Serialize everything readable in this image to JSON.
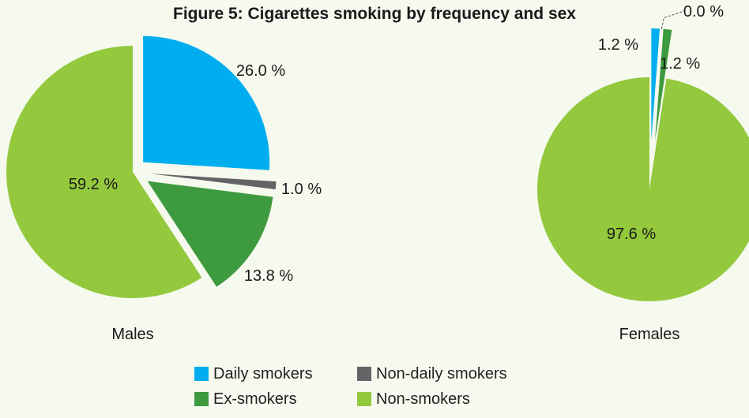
{
  "chart_data": {
    "type": "pie",
    "title": "Figure 5:  Cigarettes smoking by frequency and sex",
    "categories": [
      "Daily smokers",
      "Non-daily smokers",
      "Ex-smokers",
      "Non-smokers"
    ],
    "colors": [
      "#00aeef",
      "#636466",
      "#3e9a3e",
      "#94c83d"
    ],
    "pies": [
      {
        "name": "Males",
        "values": [
          26.0,
          1.0,
          13.8,
          59.2
        ],
        "labels": [
          "26.0 %",
          "1.0 %",
          "13.8 %",
          "59.2 %"
        ]
      },
      {
        "name": "Females",
        "values": [
          1.2,
          0.0,
          1.2,
          97.6
        ],
        "labels": [
          "1.2 %",
          "0.0 %",
          "1.2 %",
          "97.6 %"
        ]
      }
    ],
    "legend_position": "bottom-center"
  }
}
